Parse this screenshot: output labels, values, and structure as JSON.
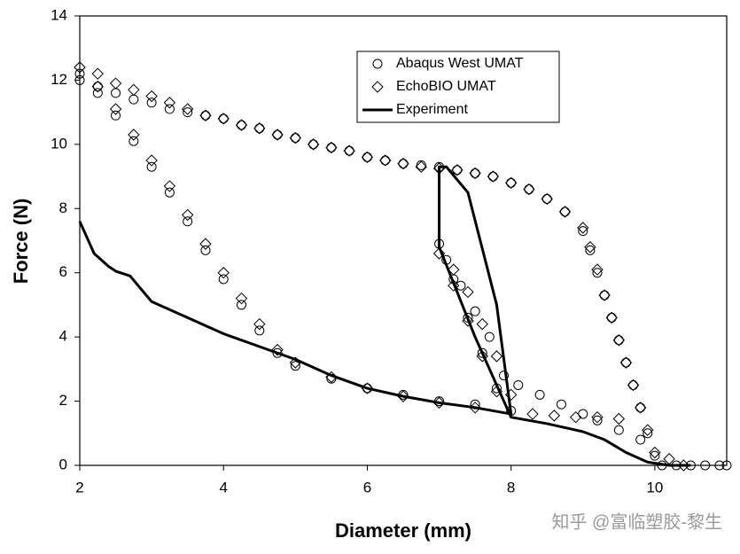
{
  "chart_data": {
    "type": "scatter",
    "xlabel": "Diameter (mm)",
    "ylabel": "Force (N)",
    "xlim": [
      2,
      11
    ],
    "xticks": [
      2,
      4,
      6,
      8,
      10
    ],
    "ylim": [
      0,
      14
    ],
    "yticks": [
      0,
      2,
      4,
      6,
      8,
      10,
      12,
      14
    ],
    "legend": "upper right",
    "watermark": "知乎 @富临塑胶-黎生",
    "series": [
      {
        "name": "Abaqus West UMAT",
        "color": "#000000",
        "marker": "circle",
        "x": [
          2,
          2.25,
          2.5,
          2.75,
          3,
          3.25,
          3.5,
          3.75,
          4,
          4.25,
          4.5,
          4.75,
          5,
          5.25,
          5.5,
          5.75,
          6,
          6.25,
          6.5,
          6.75,
          7,
          7.25,
          7.5,
          7.75,
          8,
          8.25,
          8.5,
          8.75,
          9,
          9.1,
          9.2,
          9.3,
          9.4,
          9.5,
          9.6,
          9.7,
          9.8,
          9.9,
          10,
          10.1,
          10.3,
          10.5,
          10.7,
          10.9,
          11,
          9.8,
          9.5,
          9.2,
          9,
          8.7,
          8.4,
          8.1,
          7.9,
          7.7,
          7.5,
          7.3,
          7.1,
          7,
          7.2,
          7.4,
          7.6,
          7.8,
          8,
          7.5,
          7,
          6.5,
          6,
          5.5,
          5,
          4.75,
          4.5,
          4.25,
          4,
          3.75,
          3.5,
          3.25,
          3,
          2.75,
          2.5,
          2.25,
          2
        ],
        "values": [
          12,
          11.8,
          11.6,
          11.4,
          11.3,
          11.1,
          11,
          10.9,
          10.8,
          10.6,
          10.5,
          10.3,
          10.2,
          10,
          9.9,
          9.8,
          9.6,
          9.5,
          9.4,
          9.35,
          9.3,
          9.2,
          9.1,
          9,
          8.8,
          8.6,
          8.3,
          7.9,
          7.3,
          6.7,
          6,
          5.3,
          4.6,
          3.9,
          3.2,
          2.5,
          1.8,
          1,
          0.3,
          0,
          0,
          0,
          0,
          0,
          0,
          0.8,
          1.1,
          1.4,
          1.6,
          1.9,
          2.2,
          2.5,
          2.8,
          4,
          4.8,
          5.6,
          6.4,
          6.9,
          5.8,
          4.6,
          3.5,
          2.4,
          1.7,
          1.9,
          2,
          2.2,
          2.4,
          2.7,
          3.1,
          3.5,
          4.2,
          5,
          5.8,
          6.7,
          7.6,
          8.5,
          9.3,
          10.1,
          10.9,
          11.6,
          12.2
        ]
      },
      {
        "name": "EchoBIO UMAT",
        "color": "#000000",
        "marker": "diamond",
        "x": [
          2,
          2.25,
          2.5,
          2.75,
          3,
          3.25,
          3.5,
          3.75,
          4,
          4.25,
          4.5,
          4.75,
          5,
          5.25,
          5.5,
          5.75,
          6,
          6.25,
          6.5,
          6.75,
          7,
          7.25,
          7.5,
          7.75,
          8,
          8.25,
          8.5,
          8.75,
          9,
          9.1,
          9.2,
          9.3,
          9.4,
          9.5,
          9.6,
          9.7,
          9.8,
          9.9,
          10,
          10.2,
          10.4,
          9.5,
          9.2,
          8.9,
          8.6,
          8.3,
          8.0,
          7.8,
          7.6,
          7.4,
          7.2,
          7.0,
          7.2,
          7.4,
          7.6,
          7.8,
          7.5,
          7,
          6.5,
          6,
          5.5,
          5,
          4.75,
          4.5,
          4.25,
          4,
          3.75,
          3.5,
          3.25,
          3,
          2.75,
          2.5,
          2.25,
          2
        ],
        "values": [
          12.4,
          12.2,
          11.9,
          11.7,
          11.5,
          11.3,
          11.1,
          10.9,
          10.8,
          10.6,
          10.5,
          10.3,
          10.2,
          10,
          9.9,
          9.8,
          9.6,
          9.5,
          9.4,
          9.3,
          9.25,
          9.2,
          9.1,
          9,
          8.8,
          8.6,
          8.3,
          7.9,
          7.4,
          6.8,
          6.1,
          5.3,
          4.6,
          3.9,
          3.2,
          2.5,
          1.8,
          1.1,
          0.4,
          0.2,
          0,
          1.45,
          1.5,
          1.5,
          1.55,
          1.6,
          2.2,
          3.4,
          4.4,
          5.4,
          6.1,
          6.6,
          5.6,
          4.5,
          3.4,
          2.3,
          1.8,
          1.95,
          2.15,
          2.4,
          2.75,
          3.2,
          3.6,
          4.4,
          5.2,
          6,
          6.9,
          7.8,
          8.7,
          9.5,
          10.3,
          11.1,
          11.8,
          12.4
        ]
      },
      {
        "name": "Experiment",
        "color": "#000000",
        "marker": "none",
        "x": [
          2,
          2.2,
          2.4,
          2.5,
          2.7,
          3,
          3.5,
          4,
          4.5,
          5,
          5.5,
          6,
          6.5,
          7,
          7.5,
          8,
          7.8,
          7.4,
          7.1,
          7,
          7,
          7.5,
          8,
          8.5,
          9,
          9.3,
          9.6,
          9.9,
          10.2,
          10.5
        ],
        "values": [
          7.6,
          6.6,
          6.2,
          6.05,
          5.9,
          5.1,
          4.6,
          4.1,
          3.7,
          3.3,
          2.8,
          2.4,
          2.15,
          1.95,
          1.8,
          1.6,
          5,
          8.5,
          9.3,
          9.3,
          6.8,
          4,
          1.5,
          1.3,
          1.05,
          0.8,
          0.4,
          0.1,
          0,
          0
        ]
      }
    ]
  }
}
